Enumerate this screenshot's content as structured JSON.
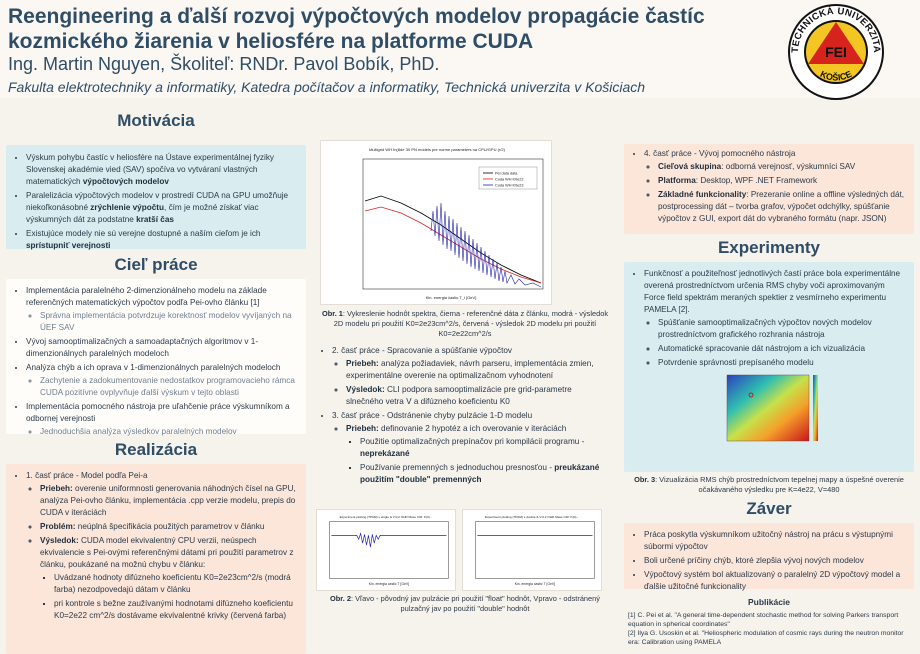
{
  "header": {
    "title": "Reengineering a ďalší rozvoj výpočtových modelov propagácie častíc kozmického žiarenia v heliosfére na platforme CUDA",
    "author": "Ing. Martin Nguyen, Školiteľ: RNDr. Pavol Bobík, PhD.",
    "affiliation": "Fakulta elektrotechniky a informatiky, Katedra počítačov a informatiky, Technická univerzita v Košiciach",
    "logo": {
      "top_text": "TECHNICKÁ UNIVERZITA",
      "bottom_text": "KOŠICE",
      "center_text": "FEI"
    }
  },
  "motivacia": {
    "heading": "Motivácia",
    "items": [
      {
        "text": "Výskum pohybu častíc v heliosfére na Ústave experimentálnej fyziky Slovenskej akadémie vied (SAV) spočíva vo vytváraní vlastných matematických ",
        "bold": "výpočtových modelov",
        "after": ""
      },
      {
        "text": "Paralelizácia výpočtových modelov v prostredí CUDA na GPU umožňuje niekoľkonásobné ",
        "bold": "zrýchlenie výpočtu",
        "after": ", čím je možné získať viac výskumných dát za podstatne ",
        "bold2": "kratší čas"
      },
      {
        "text": "Existujúce modely nie sú verejne dostupné a naším cieľom je ich ",
        "bold": "sprístupniť verejnosti",
        "after": ""
      }
    ]
  },
  "ciel": {
    "heading": "Cieľ práce",
    "items": [
      {
        "text": "Implementácia paralelného 2-dimenzionálneho modelu na základe referenčných matematických výpočtov podľa Pei-ovho článku [1]",
        "sub": [
          "Správna implementácia potvrdzuje korektnosť modelov vyvíjaných na ÚEF SAV"
        ]
      },
      {
        "text": "Vývoj samooptimalizačných a samoadaptačných algoritmov v 1-dimenzionálnych paralelných modeloch",
        "sub": []
      },
      {
        "text": "Analýza chýb a ich oprava v 1-dimenzionálnych paralelných modeloch",
        "sub": [
          "Zachytenie a zadokumentovanie nedostatkov programovacieho rámca CUDA pozitívne ovplyvňuje ďalší výskum v tejto oblasti"
        ]
      },
      {
        "text": "Implementácia pomocného nástroja pre uľahčenie práce výskumníkom a odbornej verejnosti",
        "sub": [
          "Jednoduchšia analýza výsledkov paralelných modelov"
        ]
      }
    ]
  },
  "realizacia": {
    "heading": "Realizácia",
    "part1": "1. časť práce - Model podľa Pei-a",
    "priebeh_label": "Priebeh:",
    "priebeh": " overenie uniformnosti generovania náhodných čísel na GPU, analýza Pei-ovho článku, implementácia .cpp verzie modelu, prepis do CUDA v iteráciách",
    "problem_label": "Problém:",
    "problem": " neúplná špecifikácia použitých parametrov v článku",
    "vysledok_label": "Výsledok:",
    "vysledok": " CUDA model ekvivalentný CPU verzii, neúspech ekvivalencie s Pei-ovými referenčnými dátami pri použití parametrov z článku, poukázané na možnú chybu v článku:",
    "sub": [
      "Uvádzané hodnoty difúzneho koeficientu K0=2e23cm^2/s (modrá farba) nezodpovedajú dátam v článku",
      "pri kontrole s bežne zaužívanými hodnotami difúzneho koeficientu K0=2e22 cm^2/s dostávame ekvivalentné krivky (červená farba)"
    ]
  },
  "fig1": {
    "plot_title": "Multigrid WH In(8d/r 30 PN models pre norme parameters na CPU/GPU (r/2)",
    "legend": [
      "Pei data data",
      "Cuda WH K0e22",
      "Cuda WH K0e23"
    ],
    "xlabel": "Kin. energia častic T_i [GeV]",
    "caption_bold": "Obr. 1",
    "caption": ": Vykreslenie hodnôt spektra, čierna - referenčné dáta z článku, modrá - výsledok 2D modelu pri použití K0=2e23cm^2/s, červená - výsledok 2D modelu pri použití K0=2e22cm^2/s"
  },
  "part2": {
    "title": "2. časť práce - Spracovanie a spúšťanie výpočtov",
    "priebeh_label": "Priebeh:",
    "priebeh": " analýza požiadaviek, návrh parseru, implementácia zmien, experimentálne overenie na optimalizačnom vyhodnotení",
    "vysledok_label": "Výsledok:",
    "vysledok": " CLI podpora samooptimalizácie pre grid-parametre slnečného vetra V a difúzneho koeficientu K0"
  },
  "part3": {
    "title": "3. časť práce - Odstránenie chyby pulzácie 1-D modelu",
    "priebeh_label": "Priebeh:",
    "priebeh": " definovanie 2 hypotéz a ich overovanie v iteráciách",
    "sub1": "Použitie optimalizačných prepínačov pri kompilácii programu - ",
    "sub1_bold": "neprekázané",
    "sub2": "Používanie premenných s jednoduchou presnosťou - ",
    "sub2_bold": "preukázané použitím \"double\" premenných"
  },
  "fig2": {
    "left_title": "Experiment plotting (TPAM) s single & V:0.2 OHD  Mass CIR: K(0)...",
    "right_title": "Experiment plotting (TPAM) s double & V:0.2 OHD  Mass CIR: K(0)...",
    "xlabel": "Kin. energia castic T [GeV]",
    "caption_bold": "Obr. 2",
    "caption": ": Vľavo - pôvodný jav pulzácie pri použití \"float\" hodnôt, Vpravo - odstránený pulzačný jav po použití \"double\" hodnôt"
  },
  "part4": {
    "title": "4. časť práce - Vývoj pomocného nástroja",
    "a_label": "Cieľová skupina",
    "a": ": odborná verejnosť, výskumníci SAV",
    "b_label": "Platforma",
    "b": ": Desktop, WPF .NET Framework",
    "c_label": "Základné funkcionality",
    "c": ": Prezeranie online a offline výsledných dát, postprocessing dát – tvorba grafov, výpočet odchýlky, spúšťanie výpočtov z GUI, export dát do vybraného formátu (napr. JSON)"
  },
  "experimenty": {
    "heading": "Experimenty",
    "text": "Funkčnosť a použiteľnosť jednotlivých častí práce bola experimentálne overená prostredníctvom určenia RMS chyby voči aproximovaným Force field spektrám meraných spektier z vesmírneho experimentu PAMELA [2].",
    "sub": [
      "Spúšťanie samooptimalizačných výpočtov nových modelov prostredníctvom grafického rozhrania nástroja",
      "Automatické spracovanie dát nástrojom a ich vizualizácia",
      "Potvrdenie správnosti prepísaného modelu"
    ],
    "caption_bold": "Obr. 3",
    "caption": ": Vizualizácia RMS chýb prostredníctvom tepelnej mapy a úspešné overenie očakávaného výsledku pre K=4e22, V=480"
  },
  "zaver": {
    "heading": "Záver",
    "items": [
      "Práca poskytla výskumníkom užitočný nástroj na prácu s výstupnými súbormi výpočtov",
      "Boli určené príčiny chýb, ktoré zlepšia vývoj nových modelov",
      "Výpočtový systém bol aktualizovaný o paralelný 2D výpočtový model a ďalšie užitočné funkcionality"
    ]
  },
  "publikacie": {
    "heading": "Publikácie",
    "refs": [
      "[1] C. Pei et al. \"A general time-dependent stochastic method for solving Parkers transport equation in spherical coordinates\"",
      "[2] Ilya G. Usoskin et al. \"Heliospheric modulation of cosmic rays during the neutron monitor era: Calibration using PAMELA"
    ]
  },
  "colors": {
    "blue_box": "#d9ecef",
    "peach_box": "#fbe6d9",
    "title": "#2f4d66"
  }
}
